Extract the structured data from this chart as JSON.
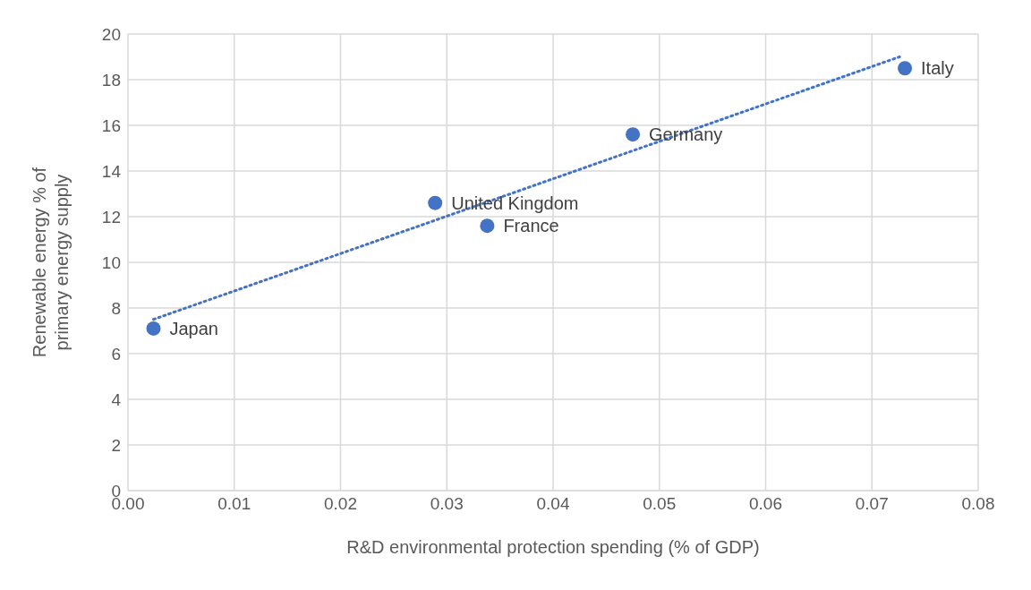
{
  "chart_data": {
    "type": "scatter",
    "xlabel": "R&D environmental protection spending (% of GDP)",
    "ylabel": "Renewable energy % of primary energy supply",
    "series": [
      {
        "type": "scatter",
        "color": "#4472c4",
        "x": [
          0.0024,
          0.0289,
          0.0338,
          0.0475,
          0.0731
        ],
        "values": [
          7.1,
          12.6,
          11.6,
          15.6,
          18.5
        ],
        "marker": "circle"
      },
      {
        "type": "line",
        "color": "#4472c4",
        "x": [
          0.0024,
          0.0726
        ],
        "values": [
          7.5,
          19.0
        ],
        "line_style": "dotted",
        "marker": "none"
      }
    ],
    "annotations": [
      {
        "text": "Japan",
        "x": 0.0024,
        "y": 7.1
      },
      {
        "text": "United Kingdom",
        "x": 0.0289,
        "y": 12.6
      },
      {
        "text": "France",
        "x": 0.0338,
        "y": 11.6
      },
      {
        "text": "Germany",
        "x": 0.0475,
        "y": 15.6
      },
      {
        "text": "Italy",
        "x": 0.0731,
        "y": 18.5
      }
    ],
    "xlim": [
      0,
      0.08
    ],
    "xticks": [
      {
        "value": 0,
        "label": "0.00"
      },
      {
        "value": 0.01,
        "label": "0.01"
      },
      {
        "value": 0.02,
        "label": "0.02"
      },
      {
        "value": 0.03,
        "label": "0.03"
      },
      {
        "value": 0.04,
        "label": "0.04"
      },
      {
        "value": 0.05,
        "label": "0.05"
      },
      {
        "value": 0.06,
        "label": "0.06"
      },
      {
        "value": 0.07,
        "label": "0.07"
      },
      {
        "value": 0.08,
        "label": "0.08"
      }
    ],
    "ylim": [
      0,
      20
    ],
    "yticks": [
      0,
      2,
      4,
      6,
      8,
      10,
      12,
      14,
      16,
      18,
      20
    ],
    "grid": true,
    "legend": false
  }
}
